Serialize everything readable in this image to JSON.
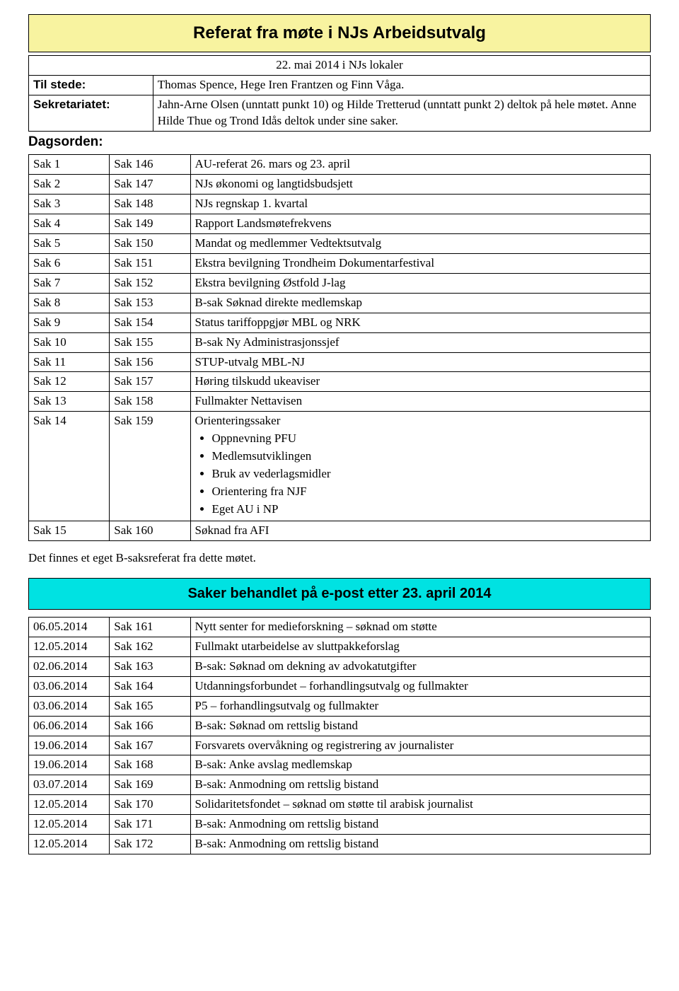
{
  "colors": {
    "title_bg": "#f8f3a0",
    "subtitle_bg": "#00e2e2",
    "border": "#000000",
    "page_bg": "#ffffff",
    "text": "#000000"
  },
  "title": "Referat fra møte i NJs Arbeidsutvalg",
  "meeting_date": "22. mai 2014 i NJs lokaler",
  "attendees_label": "Til stede:",
  "attendees": "Thomas Spence, Hege Iren Frantzen og Finn Våga.",
  "secretariat_label": "Sekretariatet:",
  "secretariat": "Jahn-Arne Olsen (unntatt punkt 10) og Hilde Tretterud (unntatt punkt 2) deltok på hele møtet. Anne Hilde Thue og Trond Idås deltok under sine saker.",
  "dagsorden_label": "Dagsorden:",
  "agenda_rows": [
    {
      "c1": "Sak 1",
      "c2": "Sak 146",
      "c3": "AU-referat 26. mars og 23. april"
    },
    {
      "c1": "Sak 2",
      "c2": "Sak 147",
      "c3": "NJs økonomi og langtidsbudsjett"
    },
    {
      "c1": "Sak 3",
      "c2": "Sak 148",
      "c3": "NJs regnskap 1. kvartal"
    },
    {
      "c1": "Sak 4",
      "c2": "Sak 149",
      "c3": "Rapport Landsmøtefrekvens"
    },
    {
      "c1": "Sak 5",
      "c2": "Sak 150",
      "c3": "Mandat og medlemmer Vedtektsutvalg"
    },
    {
      "c1": "Sak 6",
      "c2": "Sak 151",
      "c3": "Ekstra bevilgning Trondheim Dokumentarfestival"
    },
    {
      "c1": "Sak 7",
      "c2": "Sak 152",
      "c3": "Ekstra bevilgning Østfold J-lag"
    },
    {
      "c1": "Sak 8",
      "c2": "Sak 153",
      "c3": "B-sak Søknad direkte medlemskap"
    },
    {
      "c1": "Sak 9",
      "c2": "Sak 154",
      "c3": "Status tariffoppgjør MBL og NRK"
    },
    {
      "c1": "Sak 10",
      "c2": "Sak 155",
      "c3": "B-sak Ny Administrasjonssjef"
    },
    {
      "c1": "Sak 11",
      "c2": "Sak 156",
      "c3": "STUP-utvalg MBL-NJ"
    },
    {
      "c1": "Sak 12",
      "c2": "Sak 157",
      "c3": "Høring tilskudd ukeaviser"
    },
    {
      "c1": "Sak 13",
      "c2": "Sak 158",
      "c3": "Fullmakter Nettavisen"
    }
  ],
  "sak14": {
    "c1": "Sak 14",
    "c2": "Sak 159",
    "c3_pre": "Orienteringssaker",
    "bullets": [
      "Oppnevning PFU",
      "Medlemsutviklingen",
      "Bruk av vederlagsmidler",
      "Orientering fra NJF",
      "Eget AU i NP"
    ]
  },
  "sak15": {
    "c1": "Sak 15",
    "c2": "Sak 160",
    "c3": "Søknad fra AFI"
  },
  "note_text": "Det finnes et eget B-saksreferat fra dette møtet.",
  "email_section_title": "Saker behandlet på e-post etter 23. april 2014",
  "email_rows": [
    {
      "c1": "06.05.2014",
      "c2": "Sak 161",
      "c3": "Nytt senter for medieforskning – søknad om støtte"
    },
    {
      "c1": "12.05.2014",
      "c2": "Sak 162",
      "c3": "Fullmakt utarbeidelse av sluttpakkeforslag"
    },
    {
      "c1": "02.06.2014",
      "c2": "Sak 163",
      "c3": "B-sak: Søknad om dekning av advokatutgifter"
    },
    {
      "c1": "03.06.2014",
      "c2": "Sak 164",
      "c3": "Utdanningsforbundet – forhandlingsutvalg og fullmakter"
    },
    {
      "c1": "03.06.2014",
      "c2": "Sak 165",
      "c3": "P5 – forhandlingsutvalg og fullmakter"
    },
    {
      "c1": "06.06.2014",
      "c2": "Sak 166",
      "c3": "B-sak: Søknad om rettslig bistand"
    },
    {
      "c1": "19.06.2014",
      "c2": "Sak 167",
      "c3": "Forsvarets overvåkning og registrering av journalister"
    },
    {
      "c1": "19.06.2014",
      "c2": "Sak 168",
      "c3": "B-sak: Anke avslag medlemskap"
    },
    {
      "c1": "03.07.2014",
      "c2": "Sak 169",
      "c3": "B-sak: Anmodning om rettslig bistand"
    },
    {
      "c1": "12.05.2014",
      "c2": "Sak 170",
      "c3": "Solidaritetsfondet – søknad om støtte til arabisk journalist"
    },
    {
      "c1": "12.05.2014",
      "c2": "Sak 171",
      "c3": "B-sak: Anmodning om rettslig bistand"
    },
    {
      "c1": "12.05.2014",
      "c2": "Sak 172",
      "c3": "B-sak: Anmodning om rettslig bistand"
    }
  ]
}
